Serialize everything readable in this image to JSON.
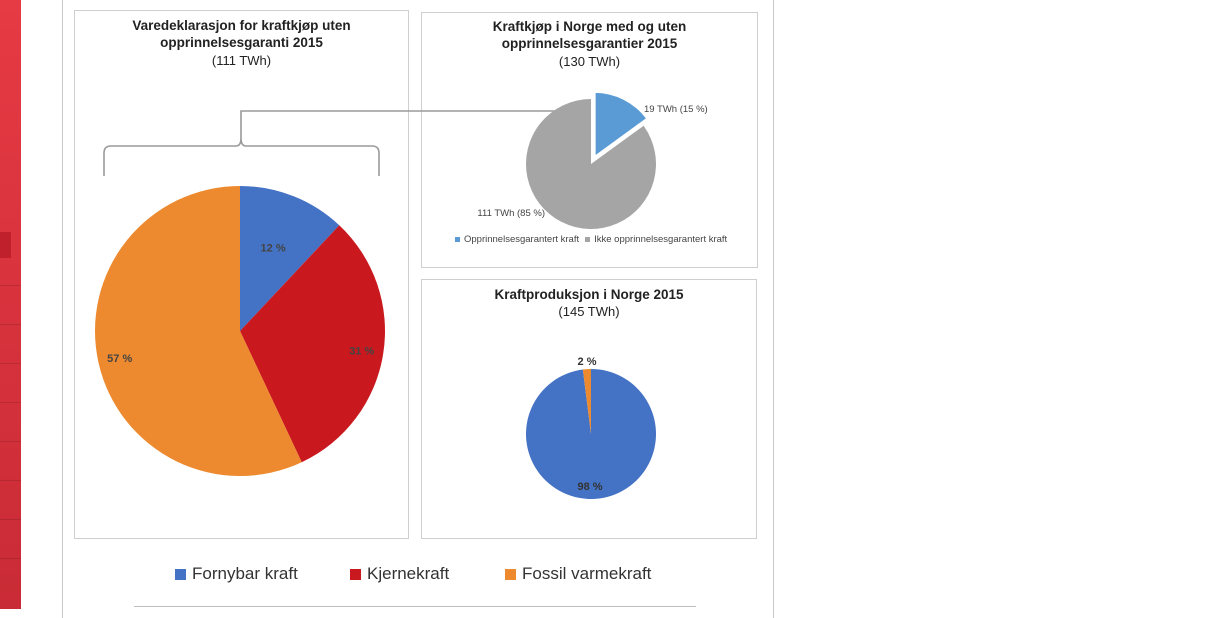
{
  "colors": {
    "fornybar": "#4472c4",
    "kjerne": "#c9191e",
    "fossil": "#ed8a2f",
    "opprinnelse": "#5b9bd5",
    "ikke_opprinnelse": "#a5a5a5",
    "sidebar": "#e63a44"
  },
  "chart_data": [
    {
      "type": "pie",
      "title": "Varedeklarasjon for kraftkjøp uten opprinnelsesgaranti 2015",
      "subtitle": "(111 TWh)",
      "categories": [
        "Fornybar kraft",
        "Kjernekraft",
        "Fossil varmekraft"
      ],
      "values": [
        12,
        31,
        57
      ],
      "labels": [
        "12 %",
        "31 %",
        "57 %"
      ],
      "legend": "bottom"
    },
    {
      "type": "pie",
      "title": "Kraftkjøp i Norge med og uten opprinnelsesgarantier 2015",
      "subtitle": "(130 TWh)",
      "categories": [
        "Opprinnelsesgarantert kraft",
        "Ikke opprinnelsesgarantert kraft"
      ],
      "values": [
        15,
        85
      ],
      "labels": [
        "19 TWh (15 %)",
        "111 TWh (85 %)"
      ],
      "legend": "bottom"
    },
    {
      "type": "pie",
      "title": "Kraftproduksjon i Norge 2015",
      "subtitle": "(145 TWh)",
      "categories": [
        "Fornybar kraft",
        "Fossil varmekraft"
      ],
      "values": [
        98,
        2
      ],
      "labels": [
        "98 %",
        "2 %"
      ]
    }
  ],
  "legend_main": [
    "Fornybar kraft",
    "Kjernekraft",
    "Fossil varmekraft"
  ]
}
